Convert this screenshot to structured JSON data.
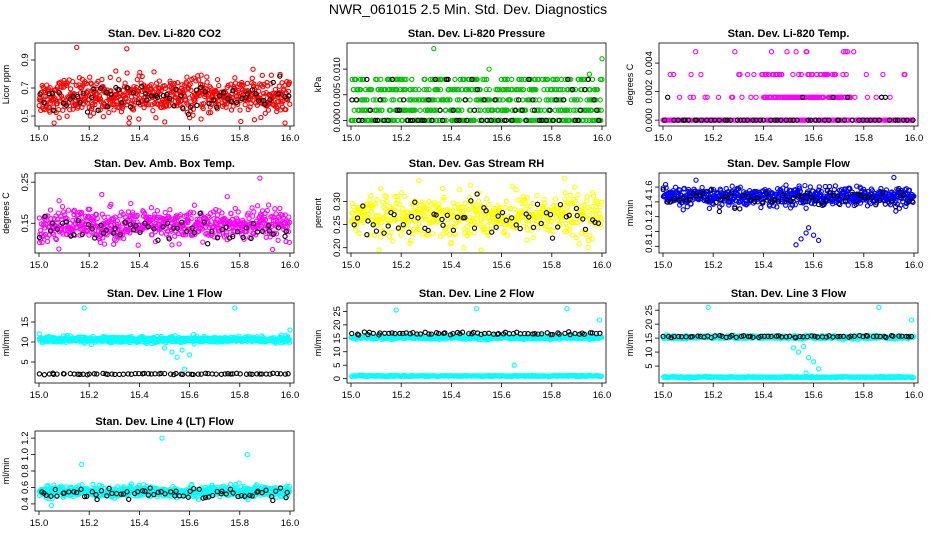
{
  "figure_title": "NWR_061015  2.5 Min. Std. Dev. Diagnostics",
  "colors": {
    "co2": "#ff0000",
    "pressure": "#00c000",
    "temp": "#ff00ff",
    "box_temp": "#ff00ff",
    "rh": "#ffff00",
    "sample_flow": "#0000ff",
    "line_flow": "#00ffff",
    "reference": "#000000"
  },
  "chart_data": [
    {
      "id": "co2",
      "type": "scatter",
      "title": "Stan. Dev. Li-820 CO2",
      "xlabel": "",
      "ylabel": "Licor ppm",
      "xlim": [
        15.0,
        16.0
      ],
      "ylim": [
        0.45,
        1.0
      ],
      "xticks": [
        "15.0",
        "15.2",
        "15.4",
        "15.6",
        "15.8",
        "16.0"
      ],
      "yticks": [
        "0.5",
        "0.7",
        "0.9"
      ],
      "series": [
        {
          "name": "main",
          "color_key": "co2",
          "n": 650,
          "center": 0.64,
          "spread": 0.09,
          "outliers": [
            [
              15.15,
              0.99
            ],
            [
              15.35,
              0.98
            ],
            [
              15.06,
              0.45
            ],
            [
              15.98,
              0.43
            ]
          ]
        },
        {
          "name": "reference",
          "color_key": "reference",
          "n": 70,
          "center": 0.63,
          "spread": 0.07
        }
      ]
    },
    {
      "id": "pressure",
      "type": "scatter",
      "title": "Stan. Dev. Li-820 Pressure",
      "xlabel": "",
      "ylabel": "kPa",
      "xlim": [
        15.0,
        16.0
      ],
      "ylim": [
        -0.0005,
        0.0145
      ],
      "xticks": [
        "15.0",
        "15.2",
        "15.4",
        "15.6",
        "15.8",
        "16.0"
      ],
      "yticks": [
        "0.000",
        "0.005",
        "0.010"
      ],
      "levels": [
        0.0,
        0.002,
        0.004,
        0.006,
        0.008
      ],
      "series": [
        {
          "name": "main",
          "color_key": "pressure",
          "n": 600,
          "level_weights": [
            0.3,
            0.2,
            0.2,
            0.18,
            0.12
          ],
          "outliers": [
            [
              15.33,
              0.014
            ],
            [
              16.0,
              0.012
            ],
            [
              15.95,
              0.009
            ],
            [
              15.55,
              0.01
            ]
          ]
        },
        {
          "name": "reference",
          "color_key": "reference",
          "n": 70,
          "level_weights": [
            0.55,
            0.15,
            0.15,
            0.1,
            0.05
          ]
        }
      ]
    },
    {
      "id": "temp",
      "type": "scatter",
      "title": "Stan. Dev. Li-820 Temp.",
      "xlabel": "",
      "ylabel": "degrees C",
      "xlim": [
        15.0,
        16.0
      ],
      "ylim": [
        -0.0002,
        0.0052
      ],
      "xticks": [
        "15.0",
        "15.2",
        "15.4",
        "15.6",
        "15.8",
        "16.0"
      ],
      "yticks": [
        "0.000",
        "0.002",
        "0.004"
      ],
      "levels": [
        0.0,
        0.0016,
        0.0032,
        0.0048
      ],
      "series": [
        {
          "name": "main",
          "color_key": "temp",
          "n": 260,
          "level_weights": [
            0.8,
            0.1,
            0.08,
            0.02
          ],
          "xmin": 15.0,
          "xmax": 16.0
        },
        {
          "name": "upper",
          "color_key": "temp",
          "n": 120,
          "level_weights": [
            0.0,
            0.65,
            0.3,
            0.05
          ],
          "xmin": 15.4,
          "xmax": 15.75
        },
        {
          "name": "reference",
          "color_key": "reference",
          "n": 60,
          "level_weights": [
            0.85,
            0.15,
            0.0,
            0.0
          ]
        }
      ]
    },
    {
      "id": "box_temp",
      "type": "scatter",
      "title": "Stan. Dev. Amb. Box Temp.",
      "xlabel": "",
      "ylabel": "degrees C",
      "xlim": [
        15.0,
        16.0
      ],
      "ylim": [
        0.085,
        0.265
      ],
      "xticks": [
        "15.0",
        "15.2",
        "15.4",
        "15.6",
        "15.8",
        "16.0"
      ],
      "yticks": [
        "0.15",
        "0.25"
      ],
      "series": [
        {
          "name": "main",
          "color_key": "box_temp",
          "n": 600,
          "center": 0.145,
          "spread": 0.028,
          "outliers": [
            [
              15.88,
              0.26
            ],
            [
              15.25,
              0.22
            ],
            [
              15.08,
              0.205
            ],
            [
              15.75,
              0.215
            ]
          ]
        },
        {
          "name": "reference",
          "color_key": "reference",
          "n": 60,
          "center": 0.13,
          "spread": 0.02
        }
      ]
    },
    {
      "id": "rh",
      "type": "scatter",
      "title": "Stan. Dev. Gas Stream RH",
      "xlabel": "",
      "ylabel": "percent",
      "xlim": [
        15.0,
        16.0
      ],
      "ylim": [
        0.195,
        0.355
      ],
      "xticks": [
        "15.0",
        "15.2",
        "15.4",
        "15.6",
        "15.8",
        "16.0"
      ],
      "yticks": [
        "0.20",
        "0.25",
        "0.30"
      ],
      "series": [
        {
          "name": "main",
          "color_key": "rh",
          "n": 550,
          "center": 0.27,
          "spread": 0.033,
          "outliers": [
            [
              15.27,
              0.345
            ],
            [
              15.85,
              0.35
            ],
            [
              15.45,
              0.2
            ]
          ]
        },
        {
          "name": "reference",
          "color_key": "reference",
          "n": 60,
          "center": 0.265,
          "spread": 0.03
        }
      ]
    },
    {
      "id": "sample_flow",
      "type": "scatter",
      "title": "Stan. Dev. Sample Flow",
      "xlabel": "",
      "ylabel": "ml/min",
      "xlim": [
        15.0,
        16.0
      ],
      "ylim": [
        0.75,
        1.75
      ],
      "xticks": [
        "15.0",
        "15.2",
        "15.4",
        "15.6",
        "15.8",
        "16.0"
      ],
      "yticks": [
        "0.8",
        "1.0",
        "1.2",
        "1.4",
        "1.6"
      ],
      "series": [
        {
          "name": "main",
          "color_key": "sample_flow",
          "n": 650,
          "center": 1.47,
          "spread": 0.09,
          "outliers": [
            [
              15.53,
              0.82
            ],
            [
              15.55,
              0.9
            ],
            [
              15.57,
              0.98
            ],
            [
              15.6,
              0.95
            ],
            [
              15.62,
              0.88
            ],
            [
              15.58,
              1.05
            ],
            [
              15.92,
              1.73
            ]
          ]
        },
        {
          "name": "reference",
          "color_key": "reference",
          "n": 70,
          "center": 1.44,
          "spread": 0.08
        }
      ]
    },
    {
      "id": "line1_flow",
      "type": "scatter",
      "title": "Stan. Dev. Line 1 Flow",
      "xlabel": "",
      "ylabel": "ml/min",
      "xlim": [
        15.0,
        16.0
      ],
      "ylim": [
        0.5,
        19.0
      ],
      "xticks": [
        "15.0",
        "15.2",
        "15.4",
        "15.6",
        "15.8",
        "16.0"
      ],
      "yticks": [
        "5",
        "10",
        "15"
      ],
      "series": [
        {
          "name": "main",
          "color_key": "line_flow",
          "n": 600,
          "center": 10.6,
          "spread": 0.55,
          "outliers": [
            [
              15.53,
              7.5
            ],
            [
              15.55,
              6.2
            ],
            [
              15.57,
              8.0
            ],
            [
              15.58,
              3.2
            ],
            [
              15.6,
              6.8
            ],
            [
              15.5,
              8.5
            ],
            [
              15.18,
              18.5
            ],
            [
              15.78,
              18.5
            ],
            [
              16.0,
              13.0
            ]
          ]
        },
        {
          "name": "reference",
          "color_key": "reference",
          "n": 70,
          "center": 2.0,
          "spread": 0.12
        }
      ]
    },
    {
      "id": "line2_flow",
      "type": "scatter",
      "title": "Stan. Dev. Line 2 Flow",
      "xlabel": "",
      "ylabel": "ml/min",
      "xlim": [
        15.0,
        16.0
      ],
      "ylim": [
        -0.5,
        27.0
      ],
      "xticks": [
        "15.0",
        "15.2",
        "15.4",
        "15.6",
        "15.8",
        "16.0"
      ],
      "yticks": [
        "0",
        "5",
        "10",
        "15",
        "20",
        "25"
      ],
      "series": [
        {
          "name": "main",
          "color_key": "line_flow",
          "n": 420,
          "center": 15.3,
          "spread": 0.45,
          "outliers": [
            [
              15.18,
              25.5
            ],
            [
              15.5,
              26.0
            ],
            [
              15.65,
              5.0
            ],
            [
              15.99,
              21.8
            ],
            [
              15.86,
              26.0
            ]
          ]
        },
        {
          "name": "baseline",
          "color_key": "line_flow",
          "n": 260,
          "center": 1.0,
          "spread": 0.15
        },
        {
          "name": "reference",
          "color_key": "reference",
          "n": 70,
          "center": 16.8,
          "spread": 0.35
        }
      ]
    },
    {
      "id": "line3_flow",
      "type": "scatter",
      "title": "Stan. Dev. Line 3 Flow",
      "xlabel": "",
      "ylabel": "ml/min",
      "xlim": [
        15.0,
        16.0
      ],
      "ylim": [
        0.0,
        26.5
      ],
      "xticks": [
        "15.0",
        "15.2",
        "15.4",
        "15.6",
        "15.8",
        "16.0"
      ],
      "yticks": [
        "5",
        "10",
        "15",
        "20",
        "25"
      ],
      "series": [
        {
          "name": "main",
          "color_key": "line_flow",
          "n": 420,
          "center": 15.3,
          "spread": 0.45,
          "outliers": [
            [
              15.52,
              11.5
            ],
            [
              15.54,
              10.0
            ],
            [
              15.56,
              12.0
            ],
            [
              15.58,
              8.0
            ],
            [
              15.6,
              6.5
            ],
            [
              15.62,
              4.0
            ],
            [
              15.57,
              2.5
            ],
            [
              15.18,
              26.0
            ],
            [
              15.86,
              26.0
            ],
            [
              15.99,
              21.5
            ]
          ]
        },
        {
          "name": "baseline",
          "color_key": "line_flow",
          "n": 260,
          "center": 1.0,
          "spread": 0.15
        },
        {
          "name": "reference",
          "color_key": "reference",
          "n": 70,
          "center": 15.6,
          "spread": 0.25
        }
      ]
    },
    {
      "id": "line4_flow",
      "type": "scatter",
      "title": "Stan. Dev. Line 4 (LT) Flow",
      "xlabel": "",
      "ylabel": "ml/min",
      "xlim": [
        15.0,
        16.0
      ],
      "ylim": [
        0.35,
        1.25
      ],
      "xticks": [
        "15.0",
        "15.2",
        "15.4",
        "15.6",
        "15.8",
        "16.0"
      ],
      "yticks": [
        "0.4",
        "0.6",
        "0.8",
        "1.0",
        "1.2"
      ],
      "series": [
        {
          "name": "main",
          "color_key": "line_flow",
          "n": 600,
          "center": 0.55,
          "spread": 0.05,
          "outliers": [
            [
              15.49,
              1.2
            ],
            [
              15.83,
              1.0
            ],
            [
              15.17,
              0.88
            ],
            [
              15.05,
              0.38
            ]
          ]
        },
        {
          "name": "reference",
          "color_key": "reference",
          "n": 70,
          "center": 0.52,
          "spread": 0.05
        }
      ]
    }
  ]
}
